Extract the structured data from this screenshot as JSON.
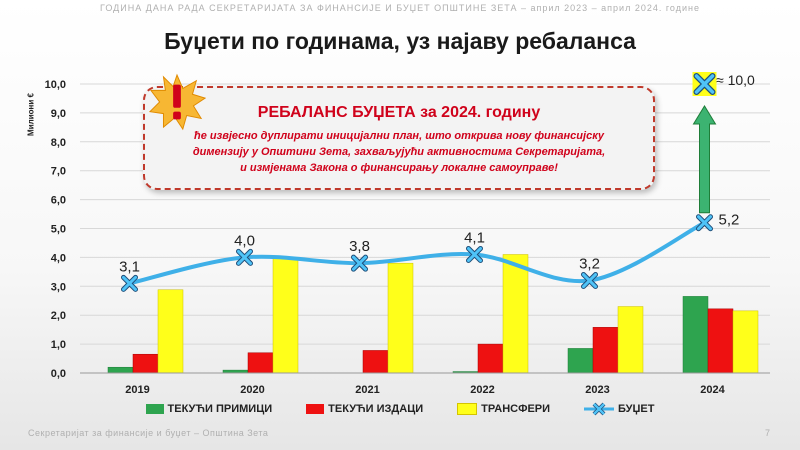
{
  "header": {
    "topline": "ГОДИНА ДАНА РАДА СЕКРЕТАРИЈАТА ЗА ФИНАНСИЈЕ И БУЏЕТ ОПШТИНЕ ЗЕТА – април 2023 – април 2024. године",
    "title": "Буџети по годинама, уз најаву ребаланса"
  },
  "callout": {
    "heading": "РЕБАЛАНС БУЏЕТА за 2024. годину",
    "lines": [
      "ће извјесно дуплирати иницијални план, што открива нову финансијску",
      "димензију у Општини Зета, захваљујући активностима Секретаријата,",
      "и измјенама Закона о финансирању локалне самоуправе!"
    ],
    "icon": "warning-burst-icon"
  },
  "rebalance_label": "≈ 10,0",
  "footer": {
    "text": "Секретаријат за финансије и буџет – Општина Зета",
    "page": "7"
  },
  "colors": {
    "green": "#2ea44f",
    "red": "#ee1111",
    "yellow": "#ffff1a",
    "line": "#3fb0e8",
    "marker": "#4fc3f7",
    "arrow": "#3cb371",
    "accent": "#d0021b"
  },
  "chart_data": {
    "type": "bar",
    "ylabel": "Милиони €",
    "ylim": [
      0,
      10
    ],
    "yticks": [
      "0,0",
      "1,0",
      "2,0",
      "3,0",
      "4,0",
      "5,0",
      "6,0",
      "7,0",
      "8,0",
      "9,0",
      "10,0"
    ],
    "categories": [
      "2019",
      "2020",
      "2021",
      "2022",
      "2023",
      "2024"
    ],
    "series": [
      {
        "name": "ТЕКУЋИ ПРИМИЦИ",
        "type": "bar",
        "values": [
          0.2,
          0.1,
          0.0,
          0.05,
          0.85,
          2.65
        ]
      },
      {
        "name": "ТЕКУЋИ ИЗДАЦИ",
        "type": "bar",
        "values": [
          0.65,
          0.7,
          0.78,
          1.0,
          1.58,
          2.22
        ]
      },
      {
        "name": "ТРАНСФЕРИ",
        "type": "bar",
        "values": [
          2.88,
          4.0,
          3.8,
          4.1,
          2.3,
          2.15
        ]
      },
      {
        "name": "БУЏЕТ",
        "type": "line",
        "values": [
          3.1,
          4.0,
          3.8,
          4.1,
          3.2,
          5.2
        ],
        "labels": [
          "3,1",
          "4,0",
          "3,8",
          "4,1",
          "3,2",
          "5,2"
        ]
      }
    ],
    "annotation": {
      "category": "2024",
      "value": 10.0,
      "label": "≈ 10,0"
    }
  }
}
